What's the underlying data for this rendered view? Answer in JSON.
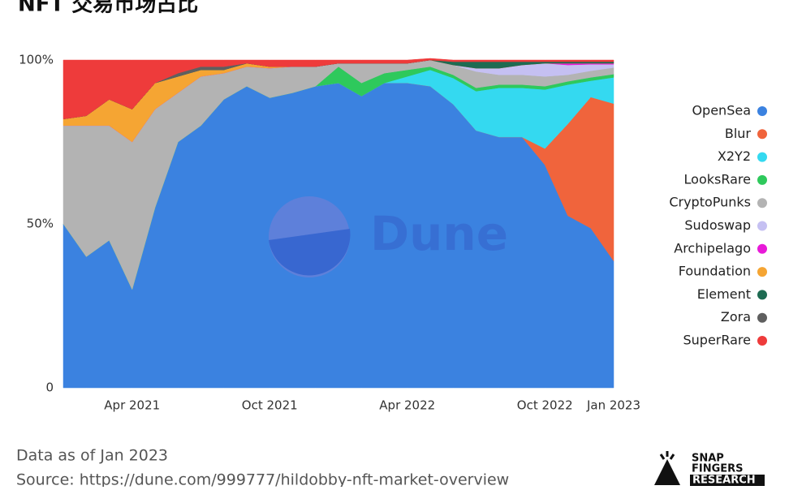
{
  "chart_data": {
    "type": "stacked_area",
    "title": "NFT 交易市场占比",
    "x": [
      "2021-01",
      "2021-02",
      "2021-03",
      "2021-04",
      "2021-05",
      "2021-06",
      "2021-07",
      "2021-08",
      "2021-09",
      "2021-10",
      "2021-11",
      "2021-12",
      "2022-01",
      "2022-02",
      "2022-03",
      "2022-04",
      "2022-05",
      "2022-06",
      "2022-07",
      "2022-08",
      "2022-09",
      "2022-10",
      "2022-11",
      "2022-12",
      "2023-01"
    ],
    "xlim": [
      "2021-01",
      "2023-01"
    ],
    "xticks": [
      {
        "value": "2021-04",
        "label": "Apr 2021"
      },
      {
        "value": "2021-10",
        "label": "Oct 2021"
      },
      {
        "value": "2022-04",
        "label": "Apr 2022"
      },
      {
        "value": "2022-10",
        "label": "Oct 2022"
      },
      {
        "value": "2023-01",
        "label": "Jan 2023"
      }
    ],
    "ylim": [
      0,
      100
    ],
    "yticks": [
      0,
      {
        "value": 50,
        "label": "50%"
      },
      {
        "value": 100,
        "label": "100%"
      }
    ],
    "series": [
      {
        "name": "OpenSea",
        "color": "#3b82e0",
        "values": [
          50,
          40,
          45,
          30,
          55,
          75,
          80,
          88,
          92,
          88.5,
          90,
          92,
          93,
          89,
          93,
          93,
          92,
          86.5,
          78.5,
          76.5,
          76.5,
          68,
          52.5,
          48.7,
          38.7
        ]
      },
      {
        "name": "Blur",
        "color": "#f0643c",
        "values": [
          0,
          0,
          0,
          0,
          0,
          0,
          0,
          0,
          0,
          0,
          0,
          0,
          0,
          0,
          0,
          0,
          0,
          0,
          0,
          0,
          0,
          5,
          28,
          40,
          48
        ]
      },
      {
        "name": "X2Y2",
        "color": "#34d9f0",
        "values": [
          0,
          0,
          0,
          0,
          0,
          0,
          0,
          0,
          0,
          0,
          0,
          0,
          0,
          0,
          0,
          2,
          5,
          8,
          12,
          15,
          15,
          18,
          12,
          5,
          8
        ]
      },
      {
        "name": "LooksRare",
        "color": "#2ec95c",
        "values": [
          0,
          0,
          0,
          0,
          0,
          0,
          0,
          0,
          0,
          0,
          0,
          0,
          5,
          4,
          3,
          2,
          1,
          1,
          1,
          1,
          1,
          1,
          1,
          1,
          1
        ]
      },
      {
        "name": "CryptoPunks",
        "color": "#b3b3b3",
        "values": [
          30,
          40,
          35,
          45,
          30,
          15,
          15,
          8,
          6,
          9,
          8,
          6,
          1,
          6,
          3,
          2,
          2,
          3,
          5,
          3,
          3,
          3,
          2,
          2,
          2
        ]
      },
      {
        "name": "Sudoswap",
        "color": "#c5c0f2",
        "values": [
          0,
          0,
          0,
          0,
          0,
          0,
          0,
          0,
          0,
          0,
          0,
          0,
          0,
          0,
          0,
          0,
          0,
          0,
          1,
          2,
          3,
          4,
          3,
          2,
          1
        ]
      },
      {
        "name": "Archipelago",
        "color": "#e81ad8",
        "values": [
          0,
          0,
          0,
          0,
          0,
          0,
          0,
          0,
          0,
          0,
          0,
          0,
          0,
          0,
          0,
          0,
          0,
          0,
          0,
          0,
          0,
          0,
          0.5,
          0.3,
          0.3
        ]
      },
      {
        "name": "Foundation",
        "color": "#f5a533",
        "values": [
          2,
          3,
          8,
          10,
          8,
          5,
          2,
          1,
          1,
          0.5,
          0,
          0,
          0,
          0,
          0,
          0,
          0,
          0,
          0,
          0,
          0,
          0,
          0,
          0,
          0
        ]
      },
      {
        "name": "Element",
        "color": "#1e6b52",
        "values": [
          0,
          0,
          0,
          0,
          0,
          0,
          0,
          0,
          0,
          0,
          0,
          0,
          0,
          0,
          0,
          0,
          0,
          1,
          2,
          2,
          1,
          0.5,
          0.5,
          0.5,
          0.5
        ]
      },
      {
        "name": "Zora",
        "color": "#5f5f5f",
        "values": [
          0,
          0,
          0,
          0,
          0,
          1,
          1,
          1,
          0,
          0,
          0,
          0,
          0,
          0,
          0,
          0,
          0,
          0,
          0,
          0,
          0,
          0,
          0,
          0,
          0
        ]
      },
      {
        "name": "SuperRare",
        "color": "#ee3b3b",
        "values": [
          18,
          17,
          12,
          15,
          7,
          4,
          2,
          2,
          1,
          2,
          2,
          2,
          1,
          1,
          1,
          1,
          0.5,
          0.5,
          0.5,
          0.5,
          0.5,
          0.5,
          0.5,
          0.5,
          0.5
        ]
      }
    ]
  },
  "watermark": "Dune",
  "footer": {
    "note": "Data as of Jan 2023",
    "source": "Source: https://dune.com/999777/hildobby-nft-market-overview"
  },
  "logo": {
    "line1": "SNAP",
    "line2": "FINGERS",
    "line3": "RESEARCH"
  }
}
